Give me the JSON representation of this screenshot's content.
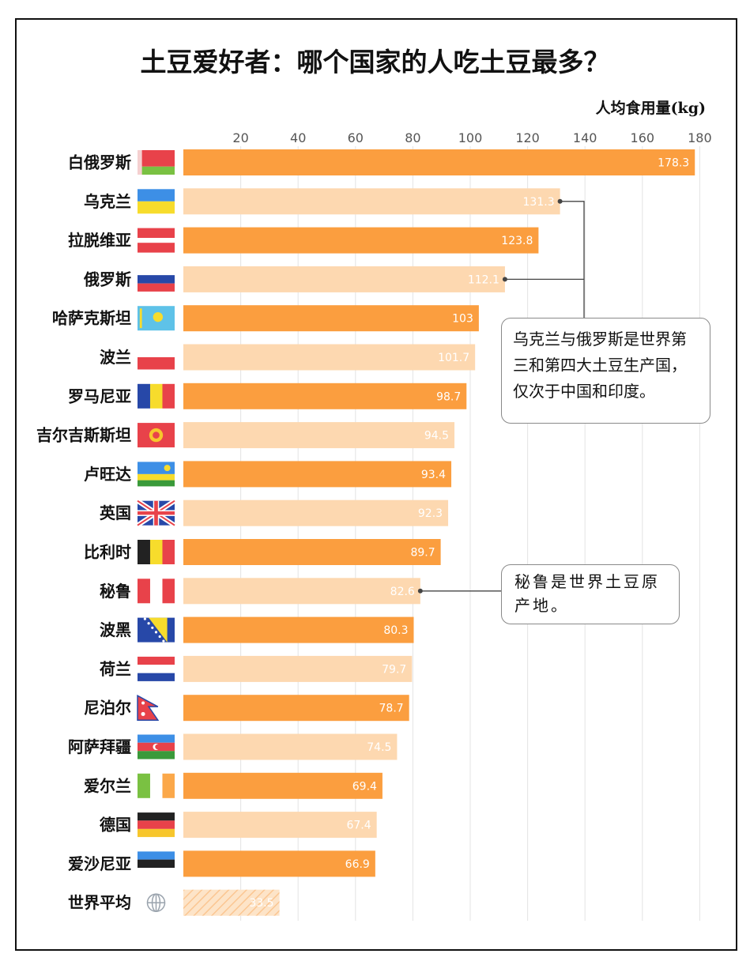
{
  "title": "土豆爱好者：哪个国家的人吃土豆最多？",
  "unit_label": "人均食用量(kg)",
  "annotations": {
    "note1": "乌克兰与俄罗斯是世界第三和第四大土豆生产国，仅次于中国和印度。",
    "note2": "秘鲁是世界土豆原产地。"
  },
  "colors": {
    "dark_bar": "#fb9e3f",
    "light_bar": "#fdd8b0",
    "grid": "#e3e3e3",
    "connector": "#444444"
  },
  "chart_data": {
    "type": "bar",
    "orientation": "horizontal",
    "title": "土豆爱好者：哪个国家的人吃土豆最多？",
    "xlabel": "人均食用量(kg)",
    "xlim": [
      0,
      180
    ],
    "ticks": [
      20,
      40,
      60,
      80,
      100,
      120,
      140,
      160,
      180
    ],
    "grid": true,
    "categories": [
      "白俄罗斯",
      "乌克兰",
      "拉脱维亚",
      "俄罗斯",
      "哈萨克斯坦",
      "波兰",
      "罗马尼亚",
      "吉尔吉斯斯坦",
      "卢旺达",
      "英国",
      "比利时",
      "秘鲁",
      "波黑",
      "荷兰",
      "尼泊尔",
      "阿萨拜疆",
      "爱尔兰",
      "德国",
      "爱沙尼亚",
      "世界平均"
    ],
    "values": [
      178.3,
      131.3,
      123.8,
      112.1,
      103,
      101.7,
      98.7,
      94.5,
      93.4,
      92.3,
      89.7,
      82.6,
      80.3,
      79.7,
      78.7,
      74.5,
      69.4,
      67.4,
      66.9,
      33.5
    ],
    "value_labels": [
      "178.3",
      "131.3",
      "123.8",
      "112.1",
      "103",
      "101.7",
      "98.7",
      "94.5",
      "93.4",
      "92.3",
      "89.7",
      "82.6",
      "80.3",
      "79.7",
      "78.7",
      "74.5",
      "69.4",
      "67.4",
      "66.9",
      "33.5"
    ],
    "flags": [
      "belarus-flag",
      "ukraine-flag",
      "latvia-flag",
      "russia-flag",
      "kazakhstan-flag",
      "poland-flag",
      "romania-flag",
      "kyrgyzstan-flag",
      "rwanda-flag",
      "uk-flag",
      "belgium-flag",
      "peru-flag",
      "bosnia-flag",
      "netherlands-flag",
      "nepal-flag",
      "azerbaijan-flag",
      "ireland-flag",
      "germany-flag",
      "estonia-flag",
      "globe-icon"
    ]
  }
}
